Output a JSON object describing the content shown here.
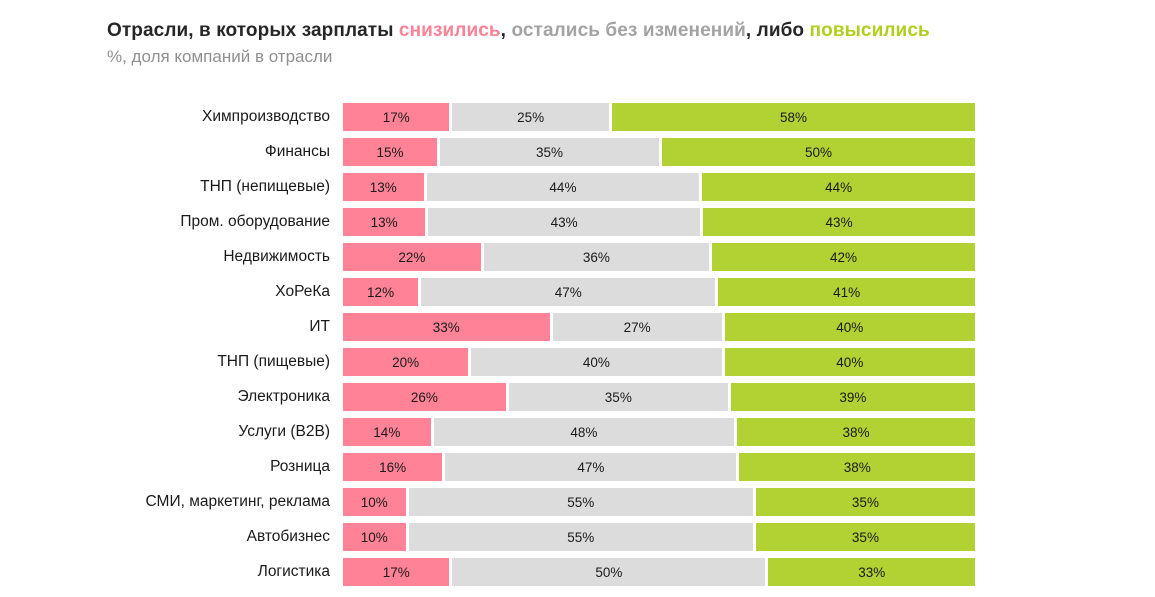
{
  "title": {
    "part1": "Отрасли, в которых зарплаты ",
    "decreased": "снизились",
    "comma1": ", ",
    "unchanged": "остались без изменений",
    "part2": ", либо ",
    "increased": "повысились"
  },
  "subtitle": "%, доля компаний в отрасли",
  "colors": {
    "decreased": "#FF8296",
    "unchanged": "#DCDCDC",
    "increased": "#B2D233",
    "title_text": "#262626",
    "unchanged_title_text": "#A3A3A3",
    "subtitle_text": "#8F8F8F"
  },
  "chart_data": {
    "type": "bar",
    "orientation": "horizontal-stacked",
    "unit": "%",
    "title": "Отрасли, в которых зарплаты снизились, остались без изменений, либо повысились",
    "subtitle": "%, доля компаний в отрасли",
    "xlabel": "",
    "ylabel": "",
    "xlim": [
      0,
      100
    ],
    "grid": false,
    "legend_position": "in-title",
    "categories": [
      "Химпроизводство",
      "Финансы",
      "ТНП (непищевые)",
      "Пром. оборудование",
      "Недвижимость",
      "ХоРеКа",
      "ИТ",
      "ТНП (пищевые)",
      "Электроника",
      "Услуги (B2B)",
      "Розница",
      "СМИ, маркетинг, реклама",
      "Автобизнес",
      "Логистика"
    ],
    "series": [
      {
        "key": "decreased",
        "name": "снизились",
        "color": "#FF8296",
        "values": [
          17,
          15,
          13,
          13,
          22,
          12,
          33,
          20,
          26,
          14,
          16,
          10,
          10,
          17
        ]
      },
      {
        "key": "unchanged",
        "name": "остались без изменений",
        "color": "#DCDCDC",
        "values": [
          25,
          35,
          44,
          43,
          36,
          47,
          27,
          40,
          35,
          48,
          47,
          55,
          55,
          50
        ]
      },
      {
        "key": "increased",
        "name": "повысились",
        "color": "#B2D233",
        "values": [
          58,
          50,
          44,
          43,
          42,
          41,
          40,
          40,
          39,
          38,
          38,
          35,
          35,
          33
        ]
      }
    ]
  }
}
